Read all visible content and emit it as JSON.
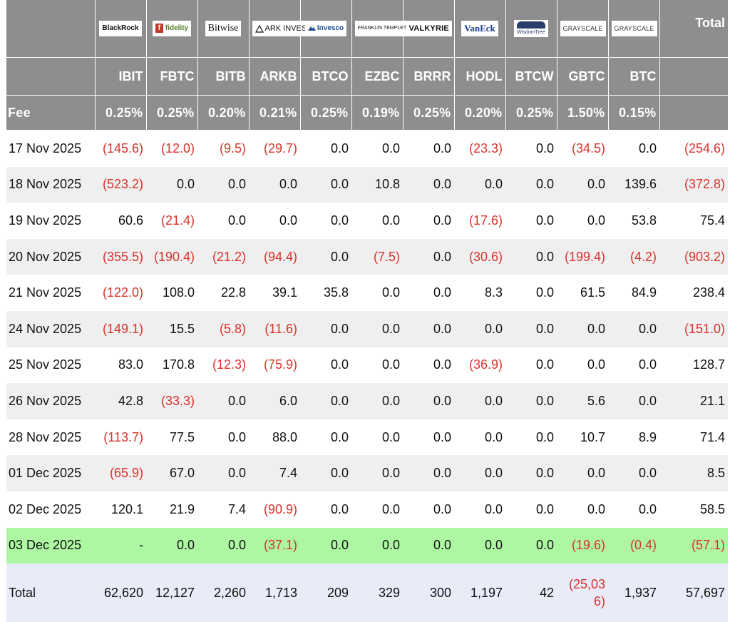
{
  "providers": [
    {
      "logo": "BlackRock",
      "ticker": "IBIT",
      "fee": "0.25%"
    },
    {
      "logo": "fidelity",
      "ticker": "FBTC",
      "fee": "0.25%"
    },
    {
      "logo": "Bitwise",
      "ticker": "BITB",
      "fee": "0.20%"
    },
    {
      "logo": "ARK INVEST",
      "ticker": "ARKB",
      "fee": "0.21%"
    },
    {
      "logo": "Invesco",
      "ticker": "BTCO",
      "fee": "0.25%"
    },
    {
      "logo": "FRANKLIN TEMPLETON",
      "ticker": "EZBC",
      "fee": "0.19%"
    },
    {
      "logo": "VALKYRIE",
      "ticker": "BRRR",
      "fee": "0.25%"
    },
    {
      "logo": "VanEck",
      "ticker": "HODL",
      "fee": "0.20%"
    },
    {
      "logo": "WisdomTree",
      "ticker": "BTCW",
      "fee": "0.25%"
    },
    {
      "logo": "GRAYSCALE",
      "ticker": "GBTC",
      "fee": "1.50%"
    },
    {
      "logo": "GRAYSCALE",
      "ticker": "BTC",
      "fee": "0.15%"
    }
  ],
  "header": {
    "total_label": "Total",
    "fee_label": "Fee"
  },
  "rows": [
    {
      "date": "17 Nov 2025",
      "values": [
        "(145.6)",
        "(12.0)",
        "(9.5)",
        "(29.7)",
        "0.0",
        "0.0",
        "0.0",
        "(23.3)",
        "0.0",
        "(34.5)",
        "0.0"
      ],
      "total": "(254.6)"
    },
    {
      "date": "18 Nov 2025",
      "values": [
        "(523.2)",
        "0.0",
        "0.0",
        "0.0",
        "0.0",
        "10.8",
        "0.0",
        "0.0",
        "0.0",
        "0.0",
        "139.6"
      ],
      "total": "(372.8)"
    },
    {
      "date": "19 Nov 2025",
      "values": [
        "60.6",
        "(21.4)",
        "0.0",
        "0.0",
        "0.0",
        "0.0",
        "0.0",
        "(17.6)",
        "0.0",
        "0.0",
        "53.8"
      ],
      "total": "75.4"
    },
    {
      "date": "20 Nov 2025",
      "values": [
        "(355.5)",
        "(190.4)",
        "(21.2)",
        "(94.4)",
        "0.0",
        "(7.5)",
        "0.0",
        "(30.6)",
        "0.0",
        "(199.4)",
        "(4.2)"
      ],
      "total": "(903.2)"
    },
    {
      "date": "21 Nov 2025",
      "values": [
        "(122.0)",
        "108.0",
        "22.8",
        "39.1",
        "35.8",
        "0.0",
        "0.0",
        "8.3",
        "0.0",
        "61.5",
        "84.9"
      ],
      "total": "238.4"
    },
    {
      "date": "24 Nov 2025",
      "values": [
        "(149.1)",
        "15.5",
        "(5.8)",
        "(11.6)",
        "0.0",
        "0.0",
        "0.0",
        "0.0",
        "0.0",
        "0.0",
        "0.0"
      ],
      "total": "(151.0)"
    },
    {
      "date": "25 Nov 2025",
      "values": [
        "83.0",
        "170.8",
        "(12.3)",
        "(75.9)",
        "0.0",
        "0.0",
        "0.0",
        "(36.9)",
        "0.0",
        "0.0",
        "0.0"
      ],
      "total": "128.7"
    },
    {
      "date": "26 Nov 2025",
      "values": [
        "42.8",
        "(33.3)",
        "0.0",
        "6.0",
        "0.0",
        "0.0",
        "0.0",
        "0.0",
        "0.0",
        "5.6",
        "0.0"
      ],
      "total": "21.1"
    },
    {
      "date": "28 Nov 2025",
      "values": [
        "(113.7)",
        "77.5",
        "0.0",
        "88.0",
        "0.0",
        "0.0",
        "0.0",
        "0.0",
        "0.0",
        "10.7",
        "8.9"
      ],
      "total": "71.4"
    },
    {
      "date": "01 Dec 2025",
      "values": [
        "(65.9)",
        "67.0",
        "0.0",
        "7.4",
        "0.0",
        "0.0",
        "0.0",
        "0.0",
        "0.0",
        "0.0",
        "0.0"
      ],
      "total": "8.5"
    },
    {
      "date": "02 Dec 2025",
      "values": [
        "120.1",
        "21.9",
        "7.4",
        "(90.9)",
        "0.0",
        "0.0",
        "0.0",
        "0.0",
        "0.0",
        "0.0",
        "0.0"
      ],
      "total": "58.5"
    },
    {
      "date": "03 Dec 2025",
      "values": [
        "-",
        "0.0",
        "0.0",
        "(37.1)",
        "0.0",
        "0.0",
        "0.0",
        "0.0",
        "0.0",
        "(19.6)",
        "(0.4)"
      ],
      "total": "(57.1)"
    }
  ],
  "totals": {
    "label": "Total",
    "values": [
      "62,620",
      "12,127",
      "2,260",
      "1,713",
      "209",
      "329",
      "300",
      "1,197",
      "42",
      "(25,036)",
      "1,937"
    ],
    "total": "57,697"
  },
  "colors": {
    "header_bg": "#8e8e8e",
    "negative": "#d9322b",
    "row_alt": "#efefef",
    "current_row": "#adf7a3",
    "totals_row": "#e9ecf8"
  }
}
